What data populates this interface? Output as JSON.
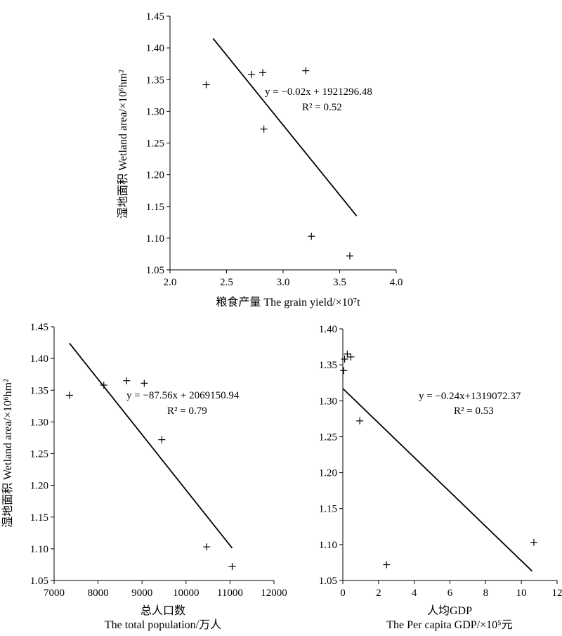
{
  "chart_data": [
    {
      "type": "scatter",
      "xlabel": "粮食产量 The grain yield/×10⁷t",
      "ylabel": "湿地面积 Wetland area/×10⁶hm²",
      "xlim": [
        2.0,
        4.0
      ],
      "ylim": [
        1.05,
        1.45
      ],
      "xticks": [
        "2.0",
        "2.5",
        "3.0",
        "3.5",
        "4.0"
      ],
      "yticks": [
        "1.05",
        "1.10",
        "1.15",
        "1.20",
        "1.25",
        "1.30",
        "1.35",
        "1.40",
        "1.45"
      ],
      "points": [
        {
          "x": 2.32,
          "y": 1.342
        },
        {
          "x": 2.72,
          "y": 1.358
        },
        {
          "x": 2.82,
          "y": 1.361
        },
        {
          "x": 2.83,
          "y": 1.272
        },
        {
          "x": 3.2,
          "y": 1.364
        },
        {
          "x": 3.25,
          "y": 1.103
        },
        {
          "x": 3.59,
          "y": 1.072
        }
      ],
      "trendline": {
        "x": [
          2.38,
          3.65
        ],
        "y": [
          1.415,
          1.135
        ]
      },
      "equation": "y = −0.02x + 1921296.48",
      "r2": "R² = 0.52",
      "grid": false
    },
    {
      "type": "scatter",
      "xlabel": "总人口数",
      "xlabel2": "The total population/万人",
      "ylabel": "湿地面积 Wetland area/×10⁶hm²",
      "xlim": [
        7000,
        12000
      ],
      "ylim": [
        1.05,
        1.45
      ],
      "xticks": [
        "7000",
        "8000",
        "9000",
        "10000",
        "11000",
        "12000"
      ],
      "yticks": [
        "1.05",
        "1.10",
        "1.15",
        "1.20",
        "1.25",
        "1.30",
        "1.35",
        "1.40",
        "1.45"
      ],
      "points": [
        {
          "x": 7350,
          "y": 1.342
        },
        {
          "x": 8130,
          "y": 1.358
        },
        {
          "x": 8650,
          "y": 1.365
        },
        {
          "x": 9050,
          "y": 1.361
        },
        {
          "x": 9450,
          "y": 1.272
        },
        {
          "x": 10470,
          "y": 1.103
        },
        {
          "x": 11050,
          "y": 1.072
        }
      ],
      "trendline": {
        "x": [
          7350,
          11050
        ],
        "y": [
          1.424,
          1.101
        ]
      },
      "equation": "y = −87.56x + 2069150.94",
      "r2": "R² = 0.79",
      "grid": false
    },
    {
      "type": "scatter",
      "xlabel": "人均GDP",
      "xlabel2": "The Per capita GDP/×10⁵元",
      "ylabel": "",
      "xlim": [
        0,
        12
      ],
      "ylim": [
        1.05,
        1.4
      ],
      "xticks": [
        "0",
        "2",
        "4",
        "6",
        "8",
        "10",
        "12"
      ],
      "yticks": [
        "1.05",
        "1.10",
        "1.15",
        "1.20",
        "1.25",
        "1.30",
        "1.35",
        "1.40"
      ],
      "points": [
        {
          "x": 0.05,
          "y": 1.342
        },
        {
          "x": 0.1,
          "y": 1.358
        },
        {
          "x": 0.25,
          "y": 1.365
        },
        {
          "x": 0.45,
          "y": 1.361
        },
        {
          "x": 0.95,
          "y": 1.272
        },
        {
          "x": 2.45,
          "y": 1.072
        },
        {
          "x": 10.7,
          "y": 1.103
        }
      ],
      "trendline": {
        "x": [
          0,
          10.6
        ],
        "y": [
          1.317,
          1.063
        ]
      },
      "equation": "y = −0.24x+1319072.37",
      "r2": "R² = 0.53",
      "grid": false
    }
  ]
}
